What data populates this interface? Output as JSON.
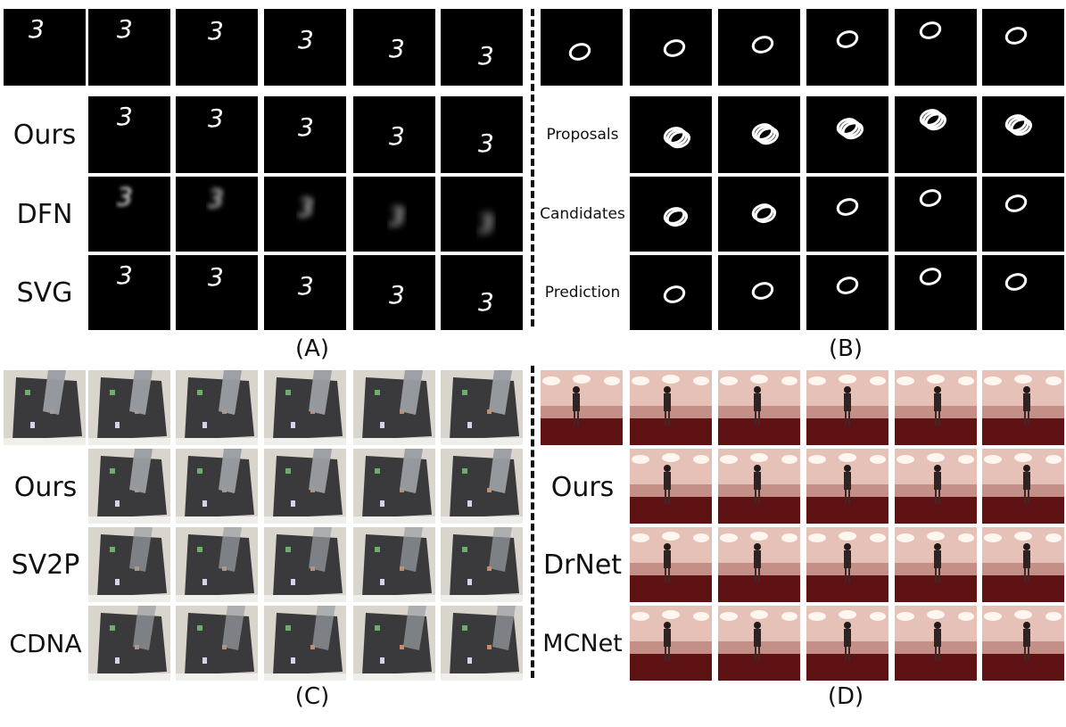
{
  "figure": {
    "panels": [
      {
        "id": "A",
        "caption": "(A)",
        "content": "digit-3",
        "row_labels": [
          "",
          "Ours",
          "DFN",
          "SVG"
        ]
      },
      {
        "id": "B",
        "caption": "(B)",
        "content": "digit-0",
        "row_labels": [
          "",
          "Proposals",
          "Candidates",
          "Prediction"
        ]
      },
      {
        "id": "C",
        "caption": "(C)",
        "content": "robot-arm",
        "row_labels": [
          "",
          "Ours",
          "SV2P",
          "CDNA"
        ]
      },
      {
        "id": "D",
        "caption": "(D)",
        "content": "walking-person",
        "row_labels": [
          "",
          "Ours",
          "DrNet",
          "MCNet"
        ]
      }
    ]
  }
}
